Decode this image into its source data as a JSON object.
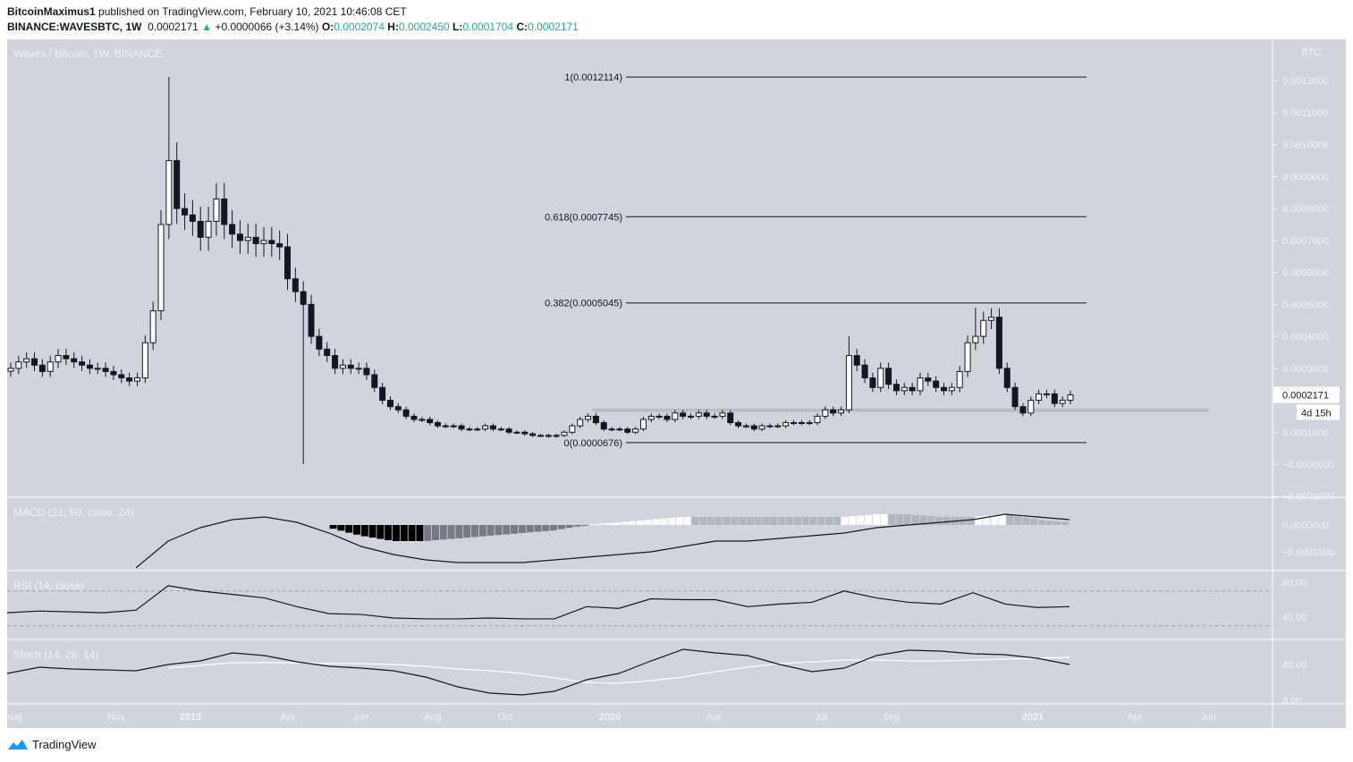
{
  "header": {
    "publisher": "BitcoinMaximus1",
    "published_text": "published on TradingView.com, February 10, 2021 10:46:08 CET",
    "symbol": "BINANCE:WAVESBTC, 1W",
    "last": "0.0002171",
    "change": "+0.0000066 (+3.14%)",
    "o_label": "O:",
    "o": "0.0002074",
    "h_label": "H:",
    "h": "0.0002450",
    "l_label": "L:",
    "l": "0.0001704",
    "c_label": "C:",
    "c": "0.0002171",
    "up_icon": "triangle-up-icon"
  },
  "footer": {
    "brand": "TradingView"
  },
  "colors": {
    "background": "#d1d4dc",
    "up": "#ffffff",
    "down": "#131722",
    "accent": "#26a69a",
    "grid_text": "#f0f3fa"
  },
  "chart_data": {
    "type": "candlestick",
    "title": "Waves / Bitcoin, 1W, BINANCE",
    "currency": "BTC",
    "last_price_label": "0.0002171",
    "countdown_label": "4d 15h",
    "y_ticks": [
      "0.0012000",
      "0.0011000",
      "0.0010000",
      "0.0009000",
      "0.0008000",
      "0.0007000",
      "0.0006000",
      "0.0005000",
      "0.0004000",
      "0.0003000",
      "0.0001000",
      "−0.0000000",
      "−0.0001000"
    ],
    "y_tick_values": [
      0.0012,
      0.0011,
      0.001,
      0.0009,
      0.0008,
      0.0007,
      0.0006,
      0.0005,
      0.0004,
      0.0003,
      0.0001,
      0,
      -0.0001
    ],
    "x_ticks": [
      "Aug",
      "Nov",
      "2019",
      "Apr",
      "Jun",
      "Aug",
      "Oct",
      "2020",
      "Apr",
      "Jul",
      "Sep",
      "2021",
      "Apr",
      "Jun"
    ],
    "closes": [
      0.0003,
      0.00032,
      0.00033,
      0.00031,
      0.00029,
      0.00032,
      0.00034,
      0.00033,
      0.00032,
      0.00031,
      0.0003,
      0.0003,
      0.00029,
      0.00028,
      0.00027,
      0.00026,
      0.00027,
      0.00038,
      0.00048,
      0.00075,
      0.00095,
      0.0008,
      0.00078,
      0.00076,
      0.00071,
      0.00076,
      0.00083,
      0.00075,
      0.00072,
      0.0007,
      0.00071,
      0.00069,
      0.0007,
      0.00069,
      0.00068,
      0.00058,
      0.00054,
      0.0005,
      0.0004,
      0.00036,
      0.00034,
      0.0003,
      0.00031,
      0.0003,
      0.0003,
      0.00028,
      0.00024,
      0.0002,
      0.00018,
      0.00017,
      0.00015,
      0.00014,
      0.00014,
      0.00013,
      0.00012,
      0.00012,
      0.00012,
      0.00011,
      0.00011,
      0.00011,
      0.00012,
      0.00011,
      0.00011,
      0.0001,
      0.0001,
      9.5e-05,
      9e-05,
      9e-05,
      8.8e-05,
      9e-05,
      0.0001,
      0.00012,
      0.00014,
      0.00015,
      0.00013,
      0.00011,
      0.00011,
      0.00011,
      0.0001,
      0.00011,
      0.00014,
      0.00015,
      0.00015,
      0.00014,
      0.00016,
      0.00015,
      0.00015,
      0.00016,
      0.00015,
      0.00015,
      0.00016,
      0.00013,
      0.00012,
      0.00012,
      0.00011,
      0.00012,
      0.00012,
      0.00012,
      0.00013,
      0.00013,
      0.00013,
      0.00013,
      0.00015,
      0.00017,
      0.00016,
      0.00017,
      0.00034,
      0.00031,
      0.00027,
      0.00024,
      0.0003,
      0.00025,
      0.00023,
      0.00024,
      0.00023,
      0.00027,
      0.00026,
      0.00024,
      0.00023,
      0.00024,
      0.00029,
      0.00038,
      0.0004,
      0.00045,
      0.00046,
      0.0003,
      0.00024,
      0.00018,
      0.00016,
      0.0002,
      0.00022,
      0.00022,
      0.00019,
      0.0002,
      0.0002171
    ],
    "notable_wicks": [
      {
        "index": 20,
        "high": 0.0012114
      },
      {
        "index": 37,
        "low": 0.0
      },
      {
        "index": 106,
        "high": 0.0004
      },
      {
        "index": 122,
        "high": 0.00049
      }
    ],
    "fib_levels": [
      {
        "label": "1(0.0012114)",
        "value": 0.0012114
      },
      {
        "label": "0.618(0.0007745)",
        "value": 0.0007745
      },
      {
        "label": "0.382(0.0005045)",
        "value": 0.0005045
      },
      {
        "label": "0(0.0000676)",
        "value": 6.76e-05
      }
    ],
    "support_zone": [
      0.000165,
      0.000172
    ],
    "indicators": {
      "macd": {
        "title": "MACD (21, 50, close, 24)",
        "ticks": [
          "0.0000000",
          "−0.0001000"
        ],
        "line": [
          null,
          null,
          null,
          null,
          -0.00016,
          -6e-05,
          -1e-05,
          2e-05,
          3e-05,
          1e-05,
          -3e-05,
          -8e-05,
          -0.00011,
          -0.00013,
          -0.00014,
          -0.00014,
          -0.00014,
          -0.00013,
          -0.00012,
          -0.00011,
          -0.0001,
          -8e-05,
          -6e-05,
          -6e-05,
          -5e-05,
          -4e-05,
          -3e-05,
          -1e-05,
          0,
          1e-05,
          2e-05,
          4e-05,
          3e-05,
          2e-05
        ],
        "histogram": [
          null,
          null,
          null,
          null,
          null,
          null,
          null,
          null,
          null,
          null,
          -1e-05,
          -4e-05,
          -6e-05,
          -6e-05,
          -5e-05,
          -4e-05,
          -3e-05,
          -2e-05,
          0,
          1e-05,
          2e-05,
          3e-05,
          3e-05,
          3e-05,
          3e-05,
          3e-05,
          3e-05,
          4e-05,
          4e-05,
          3e-05,
          3e-05,
          4e-05,
          2e-05,
          1e-05
        ]
      },
      "rsi": {
        "title": "RSI (14, close)",
        "ticks": [
          "80.00",
          "40.00"
        ],
        "bands": [
          70,
          30
        ],
        "values": [
          45,
          47,
          46,
          45,
          48,
          76,
          70,
          66,
          62,
          52,
          44,
          43,
          39,
          38,
          38,
          39,
          38,
          38,
          52,
          50,
          61,
          60,
          60,
          52,
          55,
          57,
          70,
          62,
          57,
          55,
          68,
          55,
          51,
          52
        ]
      },
      "stoch": {
        "title": "Stoch (14, 28, 14)",
        "ticks": [
          "40.00",
          "0.00"
        ],
        "k": [
          30,
          37,
          35,
          34,
          33,
          40,
          44,
          53,
          50,
          43,
          38,
          36,
          33,
          26,
          15,
          8,
          6,
          10,
          23,
          30,
          44,
          57,
          53,
          50,
          40,
          32,
          36,
          50,
          56,
          55,
          52,
          51,
          47,
          40
        ],
        "d": [
          null,
          null,
          null,
          null,
          null,
          36,
          39,
          42,
          42,
          42,
          41,
          41,
          40,
          38,
          35,
          33,
          30,
          25,
          20,
          19,
          22,
          26,
          32,
          37,
          41,
          43,
          45,
          45,
          44,
          44,
          45,
          46,
          47,
          48
        ]
      }
    }
  }
}
